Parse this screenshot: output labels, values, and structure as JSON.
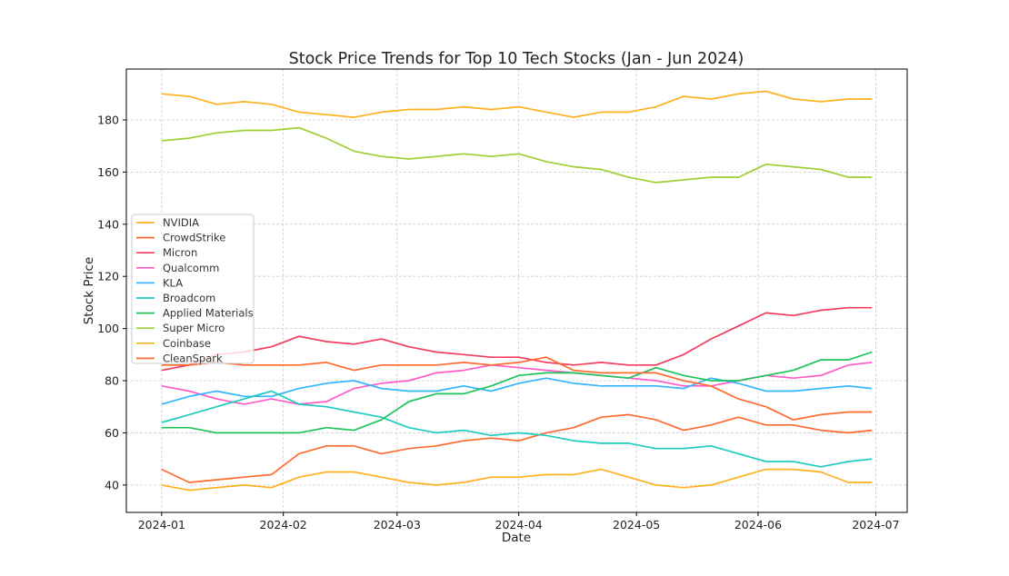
{
  "chart_data": {
    "type": "line",
    "title": "Stock Price Trends for Top 10 Tech Stocks (Jan - Jun 2024)",
    "xlabel": "Date",
    "ylabel": "Stock Price",
    "xlim": [
      "2023-12-23",
      "2024-07-09"
    ],
    "ylim": [
      29.5,
      199.5
    ],
    "grid": true,
    "legend_placement": "center-left",
    "xticks": [
      "2024-01",
      "2024-02",
      "2024-03",
      "2024-04",
      "2024-05",
      "2024-06",
      "2024-07"
    ],
    "yticks": [
      40,
      60,
      80,
      100,
      120,
      140,
      160,
      180
    ],
    "x": [
      "2024-01-01",
      "2024-01-08",
      "2024-01-15",
      "2024-01-22",
      "2024-01-29",
      "2024-02-05",
      "2024-02-12",
      "2024-02-19",
      "2024-02-26",
      "2024-03-04",
      "2024-03-11",
      "2024-03-18",
      "2024-03-25",
      "2024-04-01",
      "2024-04-08",
      "2024-04-15",
      "2024-04-22",
      "2024-04-29",
      "2024-05-06",
      "2024-05-13",
      "2024-05-20",
      "2024-05-27",
      "2024-06-03",
      "2024-06-10",
      "2024-06-17",
      "2024-06-24",
      "2024-06-30"
    ],
    "series": [
      {
        "name": "NVIDIA",
        "color": "#ffb01f",
        "values": [
          190,
          189,
          186,
          187,
          186,
          183,
          182,
          181,
          183,
          184,
          184,
          185,
          184,
          185,
          183,
          181,
          183,
          183,
          185,
          189,
          188,
          190,
          191,
          188,
          187,
          188,
          188
        ]
      },
      {
        "name": "CrowdStrike",
        "color": "#ff6b2f",
        "values": [
          46,
          41,
          42,
          43,
          44,
          52,
          55,
          55,
          52,
          54,
          55,
          57,
          58,
          57,
          60,
          62,
          66,
          67,
          65,
          61,
          63,
          66,
          63,
          63,
          61,
          60,
          61
        ]
      },
      {
        "name": "Micron",
        "color": "#f43d5e",
        "values": [
          84,
          86,
          90,
          91,
          93,
          97,
          95,
          94,
          96,
          93,
          91,
          90,
          89,
          89,
          87,
          86,
          87,
          86,
          86,
          90,
          96,
          101,
          106,
          105,
          107,
          108,
          108
        ]
      },
      {
        "name": "Qualcomm",
        "color": "#ff5cc8",
        "values": [
          78,
          76,
          73,
          71,
          73,
          71,
          72,
          77,
          79,
          80,
          83,
          84,
          86,
          85,
          84,
          83,
          82,
          81,
          80,
          78,
          78,
          80,
          82,
          81,
          82,
          86,
          87
        ]
      },
      {
        "name": "KLA",
        "color": "#33b5ff",
        "values": [
          71,
          74,
          76,
          74,
          74,
          77,
          79,
          80,
          77,
          76,
          76,
          78,
          76,
          79,
          81,
          79,
          78,
          78,
          78,
          77,
          81,
          79,
          76,
          76,
          77,
          78,
          77
        ]
      },
      {
        "name": "Broadcom",
        "color": "#1fcbc0",
        "values": [
          64,
          67,
          70,
          73,
          76,
          71,
          70,
          68,
          66,
          62,
          60,
          61,
          59,
          60,
          59,
          57,
          56,
          56,
          54,
          54,
          55,
          52,
          49,
          49,
          47,
          49,
          50
        ]
      },
      {
        "name": "Applied Materials",
        "color": "#1ec45a",
        "values": [
          62,
          62,
          60,
          60,
          60,
          60,
          62,
          61,
          65,
          72,
          75,
          75,
          78,
          82,
          83,
          83,
          82,
          81,
          85,
          82,
          80,
          80,
          82,
          84,
          88,
          88,
          91
        ]
      },
      {
        "name": "Super Micro",
        "color": "#9ecf33",
        "values": [
          172,
          173,
          175,
          176,
          176,
          177,
          173,
          168,
          166,
          165,
          166,
          167,
          166,
          167,
          164,
          162,
          161,
          158,
          156,
          157,
          158,
          158,
          163,
          162,
          161,
          158,
          158
        ]
      },
      {
        "name": "Coinbase",
        "color": "#ffb01f",
        "values": [
          40,
          38,
          39,
          40,
          39,
          43,
          45,
          45,
          43,
          41,
          40,
          41,
          43,
          43,
          44,
          44,
          46,
          43,
          40,
          39,
          40,
          43,
          46,
          46,
          45,
          41,
          41
        ]
      },
      {
        "name": "CleanSpark",
        "color": "#ff6b2f",
        "values": [
          86,
          86,
          87,
          86,
          86,
          86,
          87,
          84,
          86,
          86,
          86,
          87,
          86,
          87,
          89,
          84,
          83,
          83,
          83,
          80,
          78,
          73,
          70,
          65,
          67,
          68,
          68
        ]
      }
    ]
  }
}
